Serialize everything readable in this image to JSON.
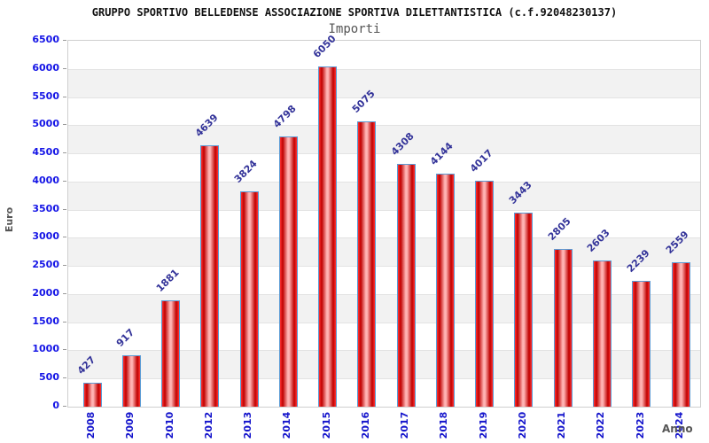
{
  "header": {
    "title": "GRUPPO SPORTIVO BELLEDENSE ASSOCIAZIONE SPORTIVA DILETTANTISTICA (c.f.92048230137)",
    "subtitle": "Importi"
  },
  "chart_data": {
    "type": "bar",
    "title": "Importi",
    "xlabel": "Anno",
    "ylabel": "Euro",
    "categories": [
      "2008",
      "2009",
      "2010",
      "2012",
      "2013",
      "2014",
      "2015",
      "2016",
      "2017",
      "2018",
      "2019",
      "2020",
      "2021",
      "2022",
      "2023",
      "2024"
    ],
    "values": [
      427,
      917,
      1881,
      4639,
      3824,
      4798,
      6050,
      5075,
      4308,
      4144,
      4017,
      3443,
      2805,
      2603,
      2239,
      2559
    ],
    "ylim": [
      0,
      6500
    ],
    "ytick_step": 500,
    "grid": true,
    "legend": "none",
    "colors": {
      "bar_edge": "#ff3333",
      "bar_dark": "#c00000",
      "bar_center": "#ffb3b3",
      "bar_border": "#5b9bd5",
      "axis_tick_label": "#1515e6",
      "category_label": "#1515cc",
      "value_label": "#333399",
      "band": "#f2f2f2",
      "gridline": "#e3e3e3",
      "plot_border": "#cfcfcf",
      "axis_title": "#555555",
      "title_color": "#111111",
      "subtitle_color": "#555555"
    }
  }
}
